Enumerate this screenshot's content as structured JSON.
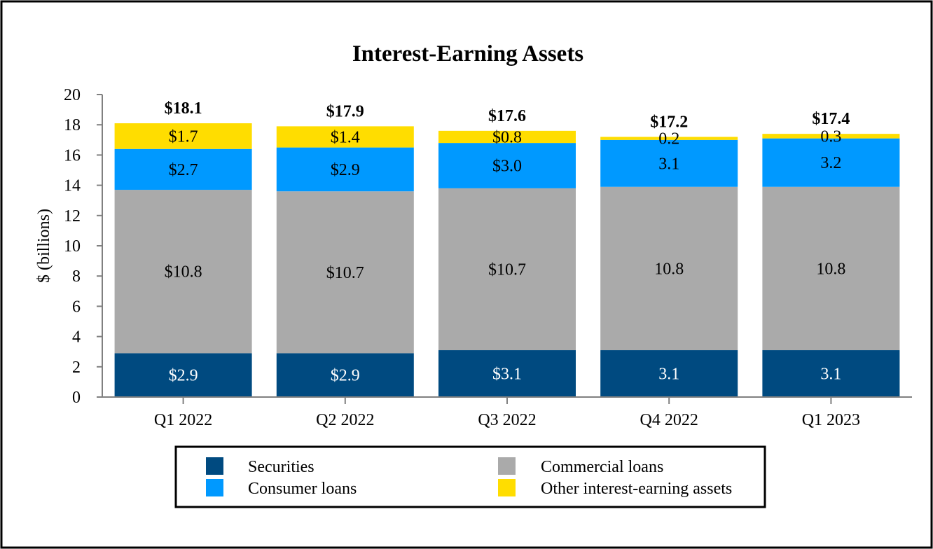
{
  "chart_data": {
    "type": "bar",
    "stacked": true,
    "title": "Interest-Earning Assets",
    "xlabel": "",
    "ylabel": "$ (billions)",
    "ylim": [
      0,
      20
    ],
    "yticks": [
      0,
      2,
      4,
      6,
      8,
      10,
      12,
      14,
      16,
      18,
      20
    ],
    "grid": false,
    "legend_position": "bottom",
    "categories": [
      "Q1 2022",
      "Q2 2022",
      "Q3 2022",
      "Q4 2022",
      "Q1 2023"
    ],
    "totals": [
      18.1,
      17.9,
      17.6,
      17.2,
      17.4
    ],
    "total_labels": [
      "$18.1",
      "$17.9",
      "$17.6",
      "$17.2",
      "$17.4"
    ],
    "series": [
      {
        "name": "Securities",
        "color": "#004a80",
        "label_color": "#ffffff",
        "values": [
          2.9,
          2.9,
          3.1,
          3.1,
          3.1
        ],
        "labels": [
          "$2.9",
          "$2.9",
          "$3.1",
          "3.1",
          "3.1"
        ]
      },
      {
        "name": "Commercial loans",
        "color": "#aaaaaa",
        "label_color": "#000000",
        "values": [
          10.8,
          10.7,
          10.7,
          10.8,
          10.8
        ],
        "labels": [
          "$10.8",
          "$10.7",
          "$10.7",
          "10.8",
          "10.8"
        ]
      },
      {
        "name": "Consumer loans",
        "color": "#0099ff",
        "label_color": "#000000",
        "values": [
          2.7,
          2.9,
          3.0,
          3.1,
          3.2
        ],
        "labels": [
          "$2.7",
          "$2.9",
          "$3.0",
          "3.1",
          "3.2"
        ]
      },
      {
        "name": "Other interest-earning assets",
        "color": "#ffdd00",
        "label_color": "#000000",
        "values": [
          1.7,
          1.4,
          0.8,
          0.2,
          0.3
        ],
        "labels": [
          "$1.7",
          "$1.4",
          "$0.8",
          "0.2",
          "0.3"
        ]
      }
    ],
    "legend": {
      "items": [
        "Securities",
        "Commercial loans",
        "Consumer loans",
        "Other interest-earning assets"
      ]
    }
  }
}
